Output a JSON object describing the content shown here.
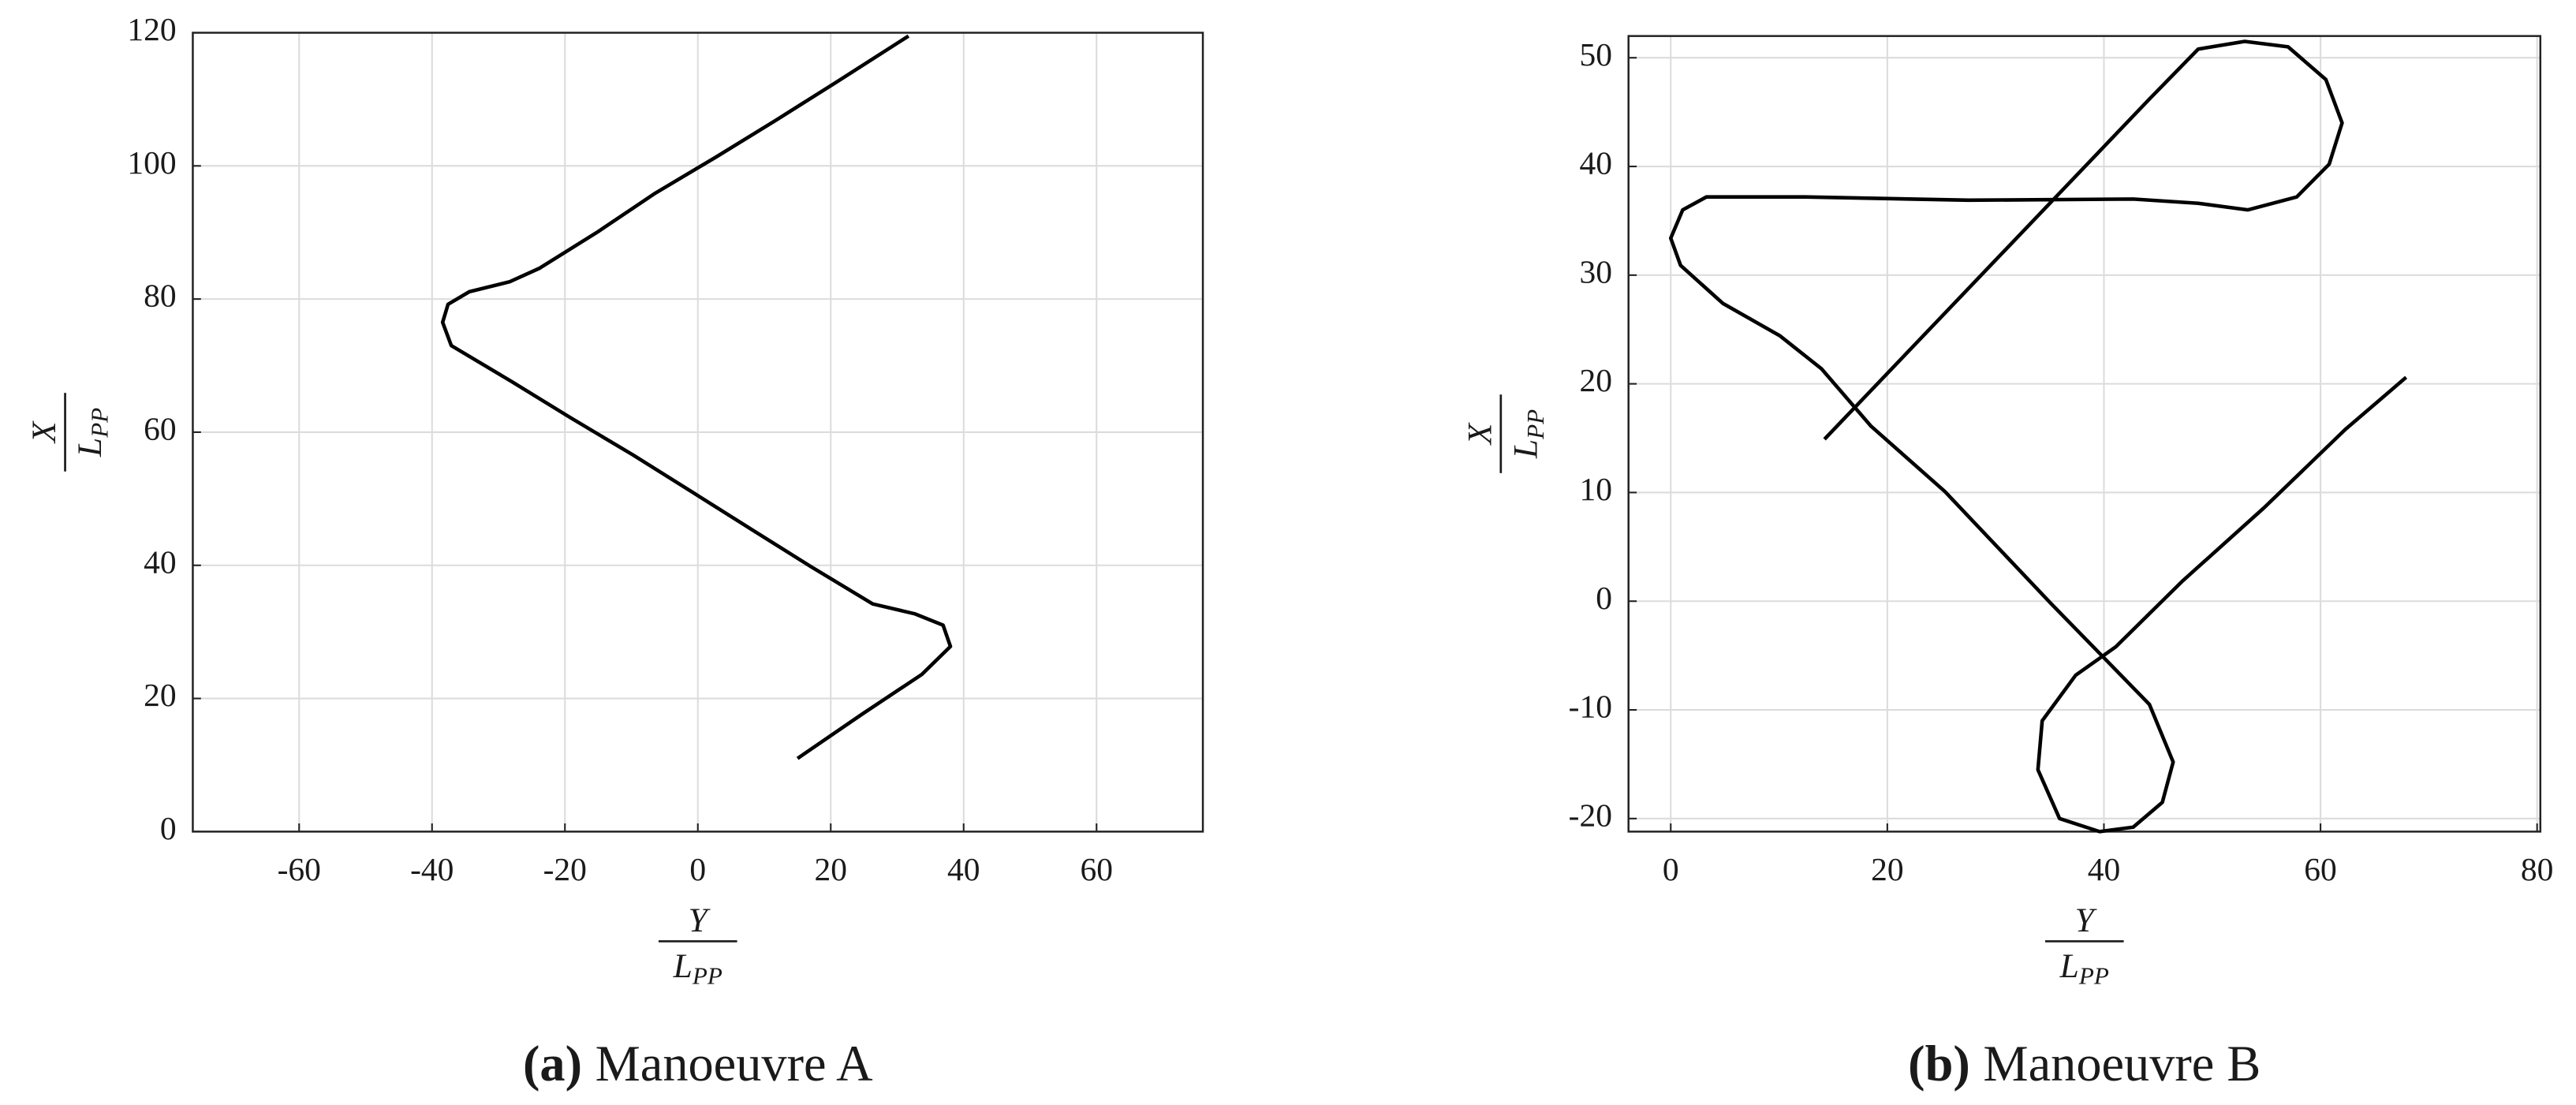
{
  "chart_data": [
    {
      "type": "line",
      "caption_label": "(a)",
      "caption": "Manoeuvre A",
      "xlabel": {
        "num": "Y",
        "den": "L",
        "den_sub": "PP"
      },
      "ylabel": {
        "num": "X",
        "den": "L",
        "den_sub": "PP"
      },
      "xlim": [
        -76,
        76
      ],
      "ylim": [
        0,
        120
      ],
      "xticks": [
        -60,
        -40,
        -20,
        0,
        20,
        40,
        60
      ],
      "yticks": [
        0,
        20,
        40,
        60,
        80,
        100,
        120
      ],
      "grid": true,
      "color": "#000000",
      "x": [
        15,
        24.8,
        33.7,
        38,
        36.9,
        32.7,
        26.3,
        17,
        8.4,
        -0.7,
        -9.8,
        -19.2,
        -28,
        -37.1,
        -38.4,
        -37.6,
        -34.4,
        -28.3,
        -23.9,
        -15.2,
        -6.4,
        2.7,
        11.8,
        20.9,
        31.7
      ],
      "y": [
        11,
        17.7,
        23.6,
        27.8,
        31,
        32.7,
        34.2,
        39.8,
        45.2,
        50.9,
        56.6,
        62.2,
        67.6,
        73,
        76.5,
        79.2,
        81.1,
        82.6,
        84.6,
        90,
        95.9,
        101.3,
        106.9,
        112.6,
        119.5
      ]
    },
    {
      "type": "line",
      "caption_label": "(b)",
      "caption": "Manoeuvre B",
      "xlabel": {
        "num": "Y",
        "den": "L",
        "den_sub": "PP"
      },
      "ylabel": {
        "num": "X",
        "den": "L",
        "den_sub": "PP"
      },
      "xlim": [
        -3.9,
        80.3
      ],
      "ylim": [
        -21.2,
        52
      ],
      "xticks": [
        0,
        20,
        40,
        60,
        80
      ],
      "yticks": [
        -20,
        -10,
        0,
        10,
        20,
        30,
        40,
        50
      ],
      "grid": true,
      "color": "#000000",
      "x": [
        14.2,
        44.2,
        48.7,
        53,
        57,
        60.5,
        62,
        60.8,
        57.8,
        53.3,
        48.7,
        42.7,
        27.5,
        12.4,
        3.3,
        1.1,
        0,
        0.9,
        4.8,
        10.1,
        13.9,
        18.5,
        25.3,
        35.1,
        44.2,
        46.4,
        45.4,
        42.7,
        39.6,
        35.9,
        33.9,
        34.3,
        37.4,
        41.1,
        47.2,
        54.8,
        62.3,
        67.9
      ],
      "y": [
        14.9,
        46.2,
        50.8,
        51.5,
        51,
        48,
        44,
        40.2,
        37.2,
        36,
        36.6,
        37,
        36.9,
        37.2,
        37.2,
        36,
        33.4,
        30.9,
        27.4,
        24.4,
        21.4,
        16.1,
        10.1,
        -0.2,
        -9.5,
        -14.8,
        -18.5,
        -20.8,
        -21.2,
        -20,
        -15.5,
        -11,
        -6.8,
        -4.2,
        1.8,
        8.6,
        15.8,
        20.6
      ]
    }
  ]
}
